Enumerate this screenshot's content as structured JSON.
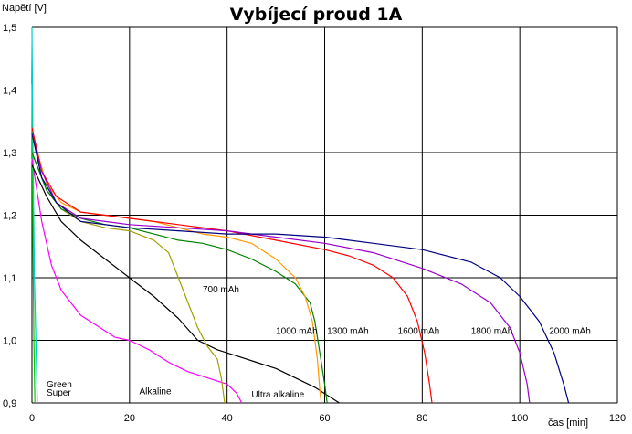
{
  "chart_data": {
    "type": "line",
    "title": "Vybíjecí proud 1A",
    "xlabel": "čas [min]",
    "ylabel": "Napětí [V]",
    "xlim": [
      0,
      120
    ],
    "ylim": [
      0.9,
      1.5
    ],
    "x_ticks": [
      "0",
      "20",
      "40",
      "60",
      "80",
      "100",
      "120"
    ],
    "y_ticks": [
      "0,9",
      "1,0",
      "1,1",
      "1,2",
      "1,3",
      "1,4",
      "1,5"
    ],
    "grid": true,
    "series": [
      {
        "name": "Green",
        "color": "#00cc00",
        "points": [
          [
            0,
            1.41
          ],
          [
            0.1,
            1.3
          ],
          [
            0.2,
            1.15
          ],
          [
            0.4,
            1.0
          ],
          [
            0.6,
            0.9
          ]
        ]
      },
      {
        "name": "Super",
        "color": "#00cccc",
        "points": [
          [
            0,
            1.5
          ],
          [
            0.2,
            1.3
          ],
          [
            0.5,
            1.1
          ],
          [
            0.8,
            1.0
          ],
          [
            1.1,
            0.9
          ]
        ]
      },
      {
        "name": "Alkaline",
        "color": "#ff00ff",
        "points": [
          [
            0,
            1.29
          ],
          [
            2,
            1.19
          ],
          [
            4,
            1.12
          ],
          [
            6,
            1.08
          ],
          [
            10,
            1.04
          ],
          [
            14,
            1.02
          ],
          [
            17,
            1.005
          ],
          [
            20,
            1.0
          ],
          [
            24,
            0.985
          ],
          [
            28,
            0.965
          ],
          [
            32,
            0.95
          ],
          [
            36,
            0.94
          ],
          [
            40,
            0.93
          ],
          [
            42,
            0.915
          ],
          [
            43,
            0.9
          ]
        ]
      },
      {
        "name": "Ultra alkaline",
        "color": "#000000",
        "points": [
          [
            0,
            1.28
          ],
          [
            3,
            1.23
          ],
          [
            6,
            1.19
          ],
          [
            10,
            1.16
          ],
          [
            15,
            1.13
          ],
          [
            20,
            1.1
          ],
          [
            25,
            1.07
          ],
          [
            30,
            1.035
          ],
          [
            34,
            1.0
          ],
          [
            38,
            0.985
          ],
          [
            42,
            0.975
          ],
          [
            46,
            0.965
          ],
          [
            50,
            0.955
          ],
          [
            54,
            0.94
          ],
          [
            58,
            0.925
          ],
          [
            61,
            0.91
          ],
          [
            63,
            0.9
          ]
        ]
      },
      {
        "name": "700 mAh",
        "color": "#a0a000",
        "points": [
          [
            0,
            1.3
          ],
          [
            3,
            1.24
          ],
          [
            6,
            1.21
          ],
          [
            10,
            1.19
          ],
          [
            15,
            1.18
          ],
          [
            20,
            1.175
          ],
          [
            25,
            1.16
          ],
          [
            28,
            1.14
          ],
          [
            30,
            1.1
          ],
          [
            32,
            1.06
          ],
          [
            34,
            1.02
          ],
          [
            36,
            0.99
          ],
          [
            38,
            0.97
          ],
          [
            38.8,
            0.94
          ],
          [
            39.5,
            0.9
          ]
        ]
      },
      {
        "name": "1000 mAh",
        "color": "#008000",
        "points": [
          [
            0,
            1.3
          ],
          [
            3,
            1.24
          ],
          [
            6,
            1.21
          ],
          [
            10,
            1.195
          ],
          [
            15,
            1.185
          ],
          [
            20,
            1.18
          ],
          [
            25,
            1.17
          ],
          [
            30,
            1.16
          ],
          [
            35,
            1.155
          ],
          [
            40,
            1.145
          ],
          [
            45,
            1.13
          ],
          [
            50,
            1.11
          ],
          [
            54,
            1.09
          ],
          [
            57,
            1.06
          ],
          [
            58,
            1.03
          ],
          [
            59,
            0.98
          ],
          [
            60,
            0.93
          ],
          [
            60.5,
            0.9
          ]
        ]
      },
      {
        "name": "1300 mAh",
        "color": "#ff9900",
        "points": [
          [
            0,
            1.33
          ],
          [
            3,
            1.25
          ],
          [
            6,
            1.22
          ],
          [
            10,
            1.205
          ],
          [
            15,
            1.2
          ],
          [
            20,
            1.195
          ],
          [
            25,
            1.19
          ],
          [
            30,
            1.18
          ],
          [
            35,
            1.17
          ],
          [
            40,
            1.165
          ],
          [
            45,
            1.155
          ],
          [
            50,
            1.13
          ],
          [
            54,
            1.1
          ],
          [
            56,
            1.07
          ],
          [
            57.5,
            1.03
          ],
          [
            58.5,
            0.97
          ],
          [
            59,
            0.92
          ],
          [
            59.3,
            0.9
          ]
        ]
      },
      {
        "name": "1600 mAh",
        "color": "#ff0000",
        "points": [
          [
            0,
            1.34
          ],
          [
            2,
            1.27
          ],
          [
            5,
            1.23
          ],
          [
            10,
            1.205
          ],
          [
            15,
            1.2
          ],
          [
            20,
            1.195
          ],
          [
            30,
            1.185
          ],
          [
            40,
            1.175
          ],
          [
            50,
            1.16
          ],
          [
            60,
            1.145
          ],
          [
            65,
            1.135
          ],
          [
            70,
            1.12
          ],
          [
            74,
            1.1
          ],
          [
            77,
            1.07
          ],
          [
            79,
            1.03
          ],
          [
            80.5,
            0.98
          ],
          [
            81.5,
            0.93
          ],
          [
            82,
            0.9
          ]
        ]
      },
      {
        "name": "1800 mAh",
        "color": "#9900cc",
        "points": [
          [
            0,
            1.33
          ],
          [
            2,
            1.27
          ],
          [
            5,
            1.22
          ],
          [
            10,
            1.195
          ],
          [
            20,
            1.185
          ],
          [
            30,
            1.18
          ],
          [
            40,
            1.175
          ],
          [
            50,
            1.165
          ],
          [
            60,
            1.155
          ],
          [
            70,
            1.14
          ],
          [
            80,
            1.115
          ],
          [
            88,
            1.09
          ],
          [
            94,
            1.06
          ],
          [
            98,
            1.02
          ],
          [
            100,
            0.98
          ],
          [
            101.5,
            0.93
          ],
          [
            102,
            0.9
          ]
        ]
      },
      {
        "name": "2000 mAh",
        "color": "#000080",
        "points": [
          [
            0,
            1.33
          ],
          [
            2,
            1.26
          ],
          [
            5,
            1.22
          ],
          [
            10,
            1.19
          ],
          [
            20,
            1.18
          ],
          [
            30,
            1.175
          ],
          [
            40,
            1.17
          ],
          [
            50,
            1.17
          ],
          [
            60,
            1.165
          ],
          [
            70,
            1.155
          ],
          [
            80,
            1.145
          ],
          [
            90,
            1.125
          ],
          [
            96,
            1.1
          ],
          [
            100,
            1.07
          ],
          [
            104,
            1.03
          ],
          [
            107,
            0.98
          ],
          [
            109,
            0.93
          ],
          [
            110,
            0.9
          ]
        ]
      }
    ],
    "series_labels": [
      {
        "series": "Green",
        "text": "Green",
        "at": [
          3,
          0.925
        ]
      },
      {
        "series": "Super",
        "text": "Super",
        "at": [
          3,
          0.912
        ]
      },
      {
        "series": "Alkaline",
        "text": "Alkaline",
        "at": [
          22,
          0.914
        ]
      },
      {
        "series": "Ultra alkaline",
        "text": "Ultra alkaline",
        "at": [
          45,
          0.909
        ]
      },
      {
        "series": "700 mAh",
        "text": "700 mAh",
        "at": [
          35,
          1.077
        ]
      },
      {
        "series": "1000 mAh",
        "text": "1000 mAh",
        "at": [
          50,
          1.01
        ]
      },
      {
        "series": "1300 mAh",
        "text": "1300 mAh",
        "at": [
          60.5,
          1.01
        ]
      },
      {
        "series": "1600 mAh",
        "text": "1600 mAh",
        "at": [
          75,
          1.01
        ]
      },
      {
        "series": "1800 mAh",
        "text": "1800 mAh",
        "at": [
          90,
          1.01
        ]
      },
      {
        "series": "2000 mAh",
        "text": "2000 mAh",
        "at": [
          106,
          1.01
        ]
      }
    ]
  }
}
